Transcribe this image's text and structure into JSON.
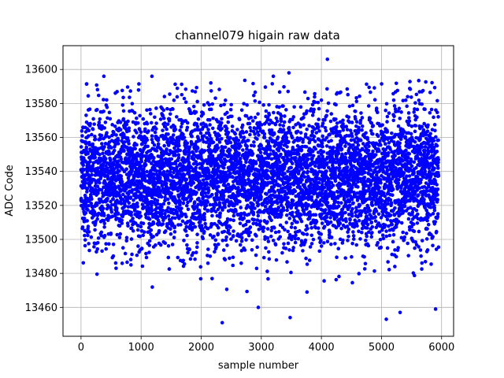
{
  "chart_data": {
    "type": "scatter",
    "title": "channel079 higain raw data",
    "xlabel": "sample number",
    "ylabel": "ADC Code",
    "xlim": [
      -300,
      6200
    ],
    "ylim": [
      13443,
      13614
    ],
    "xticks": [
      0,
      1000,
      2000,
      3000,
      4000,
      5000,
      6000
    ],
    "yticks": [
      13460,
      13480,
      13500,
      13520,
      13540,
      13560,
      13580,
      13600
    ],
    "grid": true,
    "legend": "none",
    "series": [
      {
        "color": "#0000ff",
        "marker": "circle",
        "n_points": 5950,
        "x_range": [
          0,
          5950
        ],
        "center": 13537,
        "spread_sd": 20,
        "y_extent": [
          13451,
          13606
        ],
        "outliers": [
          {
            "x": 2350,
            "y": 13451
          },
          {
            "x": 3480,
            "y": 13454
          },
          {
            "x": 5080,
            "y": 13453
          },
          {
            "x": 5310,
            "y": 13457
          },
          {
            "x": 5900,
            "y": 13459
          },
          {
            "x": 4100,
            "y": 13606
          },
          {
            "x": 3460,
            "y": 13598
          },
          {
            "x": 380,
            "y": 13596
          },
          {
            "x": 1180,
            "y": 13596
          },
          {
            "x": 3200,
            "y": 13596
          },
          {
            "x": 2950,
            "y": 13460
          }
        ]
      }
    ]
  }
}
